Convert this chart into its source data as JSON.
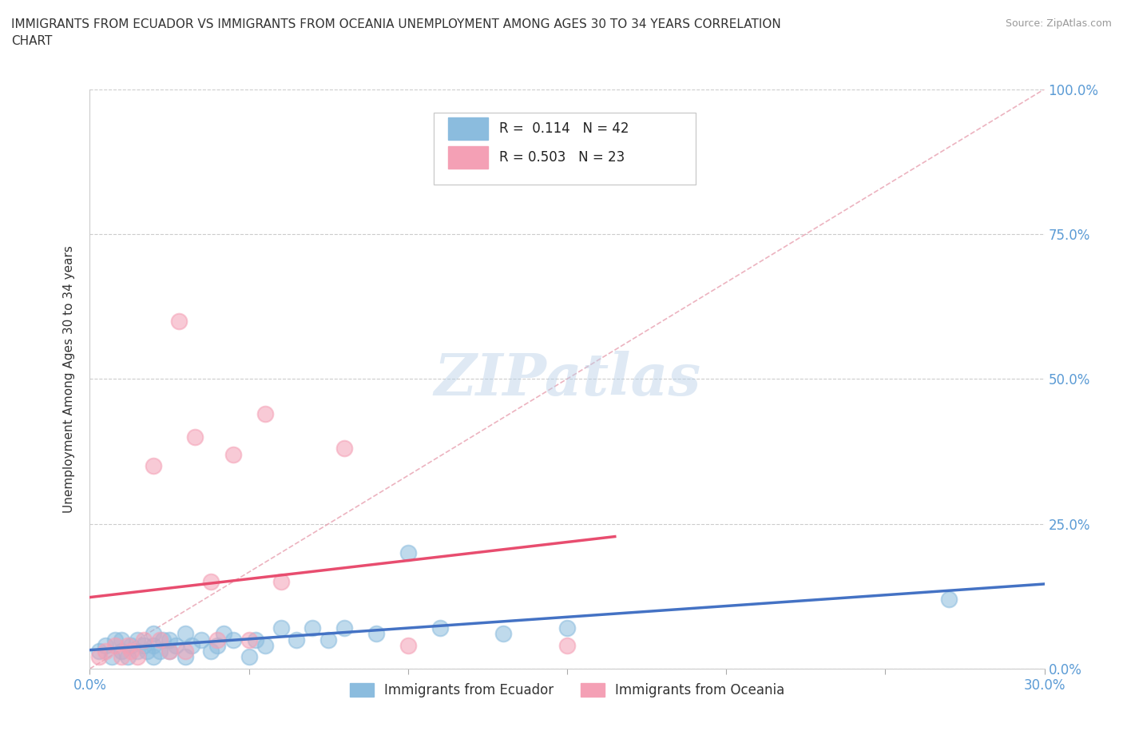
{
  "title": "IMMIGRANTS FROM ECUADOR VS IMMIGRANTS FROM OCEANIA UNEMPLOYMENT AMONG AGES 30 TO 34 YEARS CORRELATION\nCHART",
  "source": "Source: ZipAtlas.com",
  "ylabel": "Unemployment Among Ages 30 to 34 years",
  "xlim": [
    0.0,
    0.3
  ],
  "ylim": [
    0.0,
    1.0
  ],
  "xtick_positions": [
    0.0,
    0.05,
    0.1,
    0.15,
    0.2,
    0.25,
    0.3
  ],
  "xtick_labels": [
    "0.0%",
    "",
    "",
    "",
    "",
    "",
    "30.0%"
  ],
  "ytick_positions": [
    0.0,
    0.25,
    0.5,
    0.75,
    1.0
  ],
  "ytick_labels": [
    "0.0%",
    "25.0%",
    "50.0%",
    "75.0%",
    "100.0%"
  ],
  "color_ecuador": "#8bbcde",
  "color_oceania": "#f4a0b5",
  "R_ecuador": 0.114,
  "N_ecuador": 42,
  "R_oceania": 0.503,
  "N_oceania": 23,
  "watermark": "ZIPatlas",
  "background_color": "#ffffff",
  "ecuador_x": [
    0.003,
    0.005,
    0.007,
    0.008,
    0.01,
    0.01,
    0.012,
    0.013,
    0.015,
    0.015,
    0.017,
    0.018,
    0.02,
    0.02,
    0.02,
    0.022,
    0.023,
    0.025,
    0.025,
    0.027,
    0.03,
    0.03,
    0.032,
    0.035,
    0.038,
    0.04,
    0.042,
    0.045,
    0.05,
    0.052,
    0.055,
    0.06,
    0.065,
    0.07,
    0.075,
    0.08,
    0.09,
    0.1,
    0.11,
    0.13,
    0.15,
    0.27
  ],
  "ecuador_y": [
    0.03,
    0.04,
    0.02,
    0.05,
    0.03,
    0.05,
    0.02,
    0.04,
    0.03,
    0.05,
    0.04,
    0.03,
    0.02,
    0.04,
    0.06,
    0.03,
    0.05,
    0.03,
    0.05,
    0.04,
    0.02,
    0.06,
    0.04,
    0.05,
    0.03,
    0.04,
    0.06,
    0.05,
    0.02,
    0.05,
    0.04,
    0.07,
    0.05,
    0.07,
    0.05,
    0.07,
    0.06,
    0.2,
    0.07,
    0.06,
    0.07,
    0.12
  ],
  "oceania_x": [
    0.003,
    0.005,
    0.008,
    0.01,
    0.012,
    0.013,
    0.015,
    0.017,
    0.02,
    0.022,
    0.025,
    0.028,
    0.03,
    0.033,
    0.038,
    0.04,
    0.045,
    0.05,
    0.055,
    0.06,
    0.08,
    0.1,
    0.15
  ],
  "oceania_y": [
    0.02,
    0.03,
    0.04,
    0.02,
    0.04,
    0.03,
    0.02,
    0.05,
    0.35,
    0.05,
    0.03,
    0.6,
    0.03,
    0.4,
    0.15,
    0.05,
    0.37,
    0.05,
    0.44,
    0.15,
    0.38,
    0.04,
    0.04
  ],
  "grid_color": "#cccccc",
  "trend_color_ecuador": "#4472c4",
  "trend_color_oceania": "#e84d6f",
  "ref_line_color": "#e8a0b0"
}
